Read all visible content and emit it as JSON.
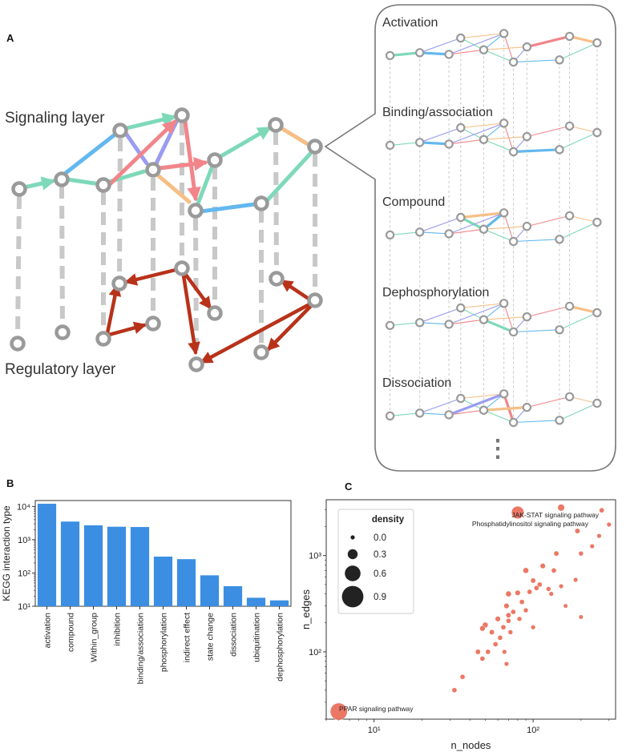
{
  "figure": {
    "panels": {
      "a": {
        "label": "A",
        "signaling_layer": "Signaling layer",
        "regulatory_layer": "Regulatory layer",
        "callout_titles": [
          "Activation",
          "Binding/association",
          "Compound",
          "Dephosphorylation",
          "Dissociation"
        ],
        "ellipsis": "⋮"
      },
      "b": {
        "label": "B"
      },
      "c": {
        "label": "C"
      }
    },
    "colors": {
      "node": "#9a9a9a",
      "dash": "#c8c8c8",
      "regulatory": "#b8321a",
      "teal": "#7ed9b9",
      "blue": "#63b8ef",
      "purple": "#9a9cf0",
      "pink": "#f2858a",
      "orange": "#f6bf86",
      "bar": "#3b8ee2",
      "dot": "#e8604a"
    }
  },
  "chart_data": [
    {
      "type": "bar",
      "panel": "B",
      "ylabel": "KEGG interaction type",
      "yscale": "log",
      "ylim": [
        10,
        15000
      ],
      "yticks": [
        {
          "value": 10,
          "label": "10¹"
        },
        {
          "value": 100,
          "label": "10²"
        },
        {
          "value": 1000,
          "label": "10³"
        },
        {
          "value": 10000,
          "label": "10⁴"
        }
      ],
      "categories": [
        "activation",
        "compound",
        "Within_group",
        "inhibition",
        "binding/association",
        "phosphorylation",
        "indirect effect",
        "state change",
        "dissociation",
        "ubiquitination",
        "dephosphorylation"
      ],
      "values": [
        12000,
        3500,
        2700,
        2450,
        2400,
        310,
        260,
        85,
        40,
        18,
        15
      ]
    },
    {
      "type": "scatter",
      "panel": "C",
      "xlabel": "n_nodes",
      "ylabel": "n_edges",
      "xscale": "log",
      "yscale": "log",
      "xlim": [
        5,
        330
      ],
      "ylim": [
        20,
        3800
      ],
      "xticks": [
        {
          "value": 10,
          "label": "10¹"
        },
        {
          "value": 100,
          "label": "10²"
        }
      ],
      "yticks": [
        {
          "value": 100,
          "label": "10²"
        },
        {
          "value": 1000,
          "label": "10³"
        }
      ],
      "legend": {
        "title": "density",
        "placement": "top-left",
        "entries": [
          {
            "label": "0.0",
            "value": 0.0
          },
          {
            "label": "0.3",
            "value": 0.3
          },
          {
            "label": "0.6",
            "value": 0.6
          },
          {
            "label": "0.9",
            "value": 0.9
          }
        ]
      },
      "annotations": [
        {
          "text": "JAK-STAT signaling pathway",
          "x": 150,
          "y": 3150
        },
        {
          "text": "Phosphatidylinositol signaling pathway",
          "x": 80,
          "y": 2800
        },
        {
          "text": "PPAR signaling pathway",
          "x": 6,
          "y": 24
        }
      ],
      "points": [
        {
          "x": 6,
          "y": 24,
          "density": 0.67
        },
        {
          "x": 150,
          "y": 3150,
          "density": 0.14
        },
        {
          "x": 80,
          "y": 2800,
          "density": 0.44
        },
        {
          "x": 270,
          "y": 2950,
          "density": 0.04
        },
        {
          "x": 300,
          "y": 2100,
          "density": 0.02
        },
        {
          "x": 260,
          "y": 1600,
          "density": 0.02
        },
        {
          "x": 235,
          "y": 1250,
          "density": 0.02
        },
        {
          "x": 190,
          "y": 1800,
          "density": 0.05
        },
        {
          "x": 200,
          "y": 1050,
          "density": 0.03
        },
        {
          "x": 185,
          "y": 560,
          "density": 0.02
        },
        {
          "x": 140,
          "y": 1050,
          "density": 0.05
        },
        {
          "x": 115,
          "y": 780,
          "density": 0.06
        },
        {
          "x": 100,
          "y": 550,
          "density": 0.05
        },
        {
          "x": 105,
          "y": 460,
          "density": 0.04
        },
        {
          "x": 135,
          "y": 700,
          "density": 0.04
        },
        {
          "x": 150,
          "y": 480,
          "density": 0.02
        },
        {
          "x": 160,
          "y": 300,
          "density": 0.01
        },
        {
          "x": 200,
          "y": 230,
          "density": 0.01
        },
        {
          "x": 90,
          "y": 700,
          "density": 0.08
        },
        {
          "x": 95,
          "y": 420,
          "density": 0.04
        },
        {
          "x": 80,
          "y": 410,
          "density": 0.06
        },
        {
          "x": 110,
          "y": 500,
          "density": 0.04
        },
        {
          "x": 125,
          "y": 450,
          "density": 0.03
        },
        {
          "x": 130,
          "y": 400,
          "density": 0.02
        },
        {
          "x": 85,
          "y": 330,
          "density": 0.04
        },
        {
          "x": 70,
          "y": 400,
          "density": 0.08
        },
        {
          "x": 75,
          "y": 260,
          "density": 0.04
        },
        {
          "x": 70,
          "y": 210,
          "density": 0.04
        },
        {
          "x": 68,
          "y": 300,
          "density": 0.06
        },
        {
          "x": 60,
          "y": 220,
          "density": 0.06
        },
        {
          "x": 65,
          "y": 180,
          "density": 0.04
        },
        {
          "x": 82,
          "y": 220,
          "density": 0.03
        },
        {
          "x": 72,
          "y": 160,
          "density": 0.03
        },
        {
          "x": 55,
          "y": 160,
          "density": 0.05
        },
        {
          "x": 50,
          "y": 190,
          "density": 0.08
        },
        {
          "x": 48,
          "y": 175,
          "density": 0.07
        },
        {
          "x": 58,
          "y": 120,
          "density": 0.04
        },
        {
          "x": 62,
          "y": 140,
          "density": 0.04
        },
        {
          "x": 52,
          "y": 100,
          "density": 0.04
        },
        {
          "x": 48,
          "y": 85,
          "density": 0.04
        },
        {
          "x": 45,
          "y": 100,
          "density": 0.05
        },
        {
          "x": 68,
          "y": 75,
          "density": 0.02
        },
        {
          "x": 66,
          "y": 100,
          "density": 0.02
        },
        {
          "x": 36,
          "y": 55,
          "density": 0.04
        },
        {
          "x": 32,
          "y": 40,
          "density": 0.04
        },
        {
          "x": 100,
          "y": 180,
          "density": 0.02
        },
        {
          "x": 90,
          "y": 270,
          "density": 0.03
        },
        {
          "x": 70,
          "y": 240,
          "density": 0.05
        }
      ]
    }
  ]
}
